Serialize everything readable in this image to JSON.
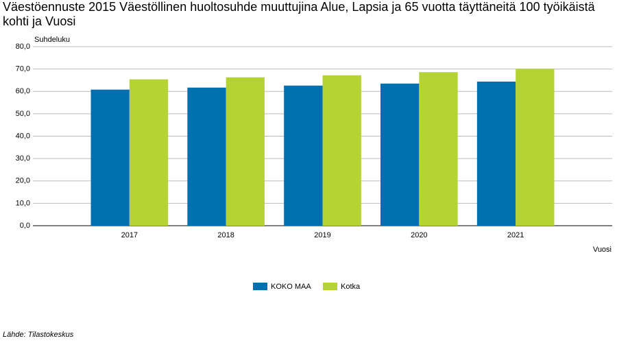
{
  "chart_data": {
    "type": "bar",
    "title": "Väestöennuste 2015 Väestöllinen huoltosuhde muuttujina Alue, Lapsia ja 65 vuotta täyttäneitä 100 työikäistä kohti ja Vuosi",
    "y_label": "Suhdeluku",
    "x_label": "Vuosi",
    "source": "Lähde: Tilastokeskus",
    "categories": [
      "2017",
      "2018",
      "2019",
      "2020",
      "2021"
    ],
    "series": [
      {
        "name": "KOKO MAA",
        "color": "#0070b0",
        "values": [
          60.8,
          61.7,
          62.6,
          63.5,
          64.4
        ]
      },
      {
        "name": "Kotka",
        "color": "#b5d334",
        "values": [
          65.4,
          66.3,
          67.2,
          68.6,
          70.1
        ]
      }
    ],
    "ylim": [
      0,
      80
    ],
    "yticks": [
      {
        "value": 0,
        "label": "0,0"
      },
      {
        "value": 10,
        "label": "10,0"
      },
      {
        "value": 20,
        "label": "20,0"
      },
      {
        "value": 30,
        "label": "30,0"
      },
      {
        "value": 40,
        "label": "40,0"
      },
      {
        "value": 50,
        "label": "50,0"
      },
      {
        "value": 60,
        "label": "60,0"
      },
      {
        "value": 70,
        "label": "70,0"
      },
      {
        "value": 80,
        "label": "80,0"
      }
    ],
    "grid": true,
    "legend": "bottom"
  }
}
